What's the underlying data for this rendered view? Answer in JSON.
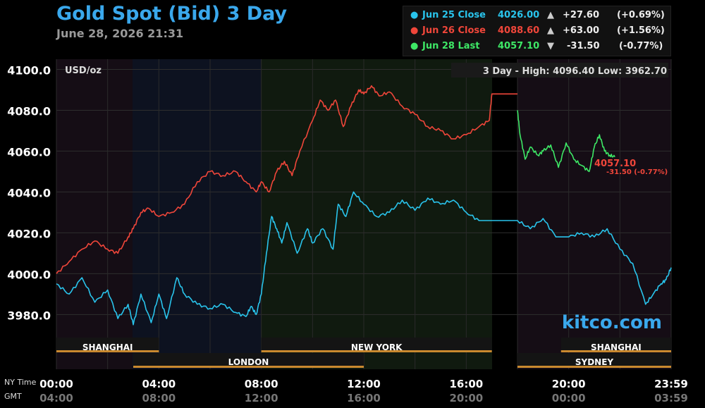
{
  "header": {
    "title": "Gold Spot (Bid) 3 Day",
    "datetime": "June 28, 2026 21:31"
  },
  "legend": [
    {
      "name": "Jun 25 Close",
      "price": "4026.00",
      "arrow": "▲",
      "change": "+27.60",
      "pct": "(+0.69%)",
      "color": "#29c4ec"
    },
    {
      "name": "Jun 26 Close",
      "price": "4088.60",
      "arrow": "▲",
      "change": "+63.00",
      "pct": "(+1.56%)",
      "color": "#f0463a"
    },
    {
      "name": "Jun 28 Last",
      "price": "4057.10",
      "arrow": "▼",
      "change": "-31.50",
      "pct": "(-0.77%)",
      "color": "#3ee866"
    }
  ],
  "chart_data": {
    "type": "line",
    "unit_label": "USD/oz",
    "stats": "3 Day - High: 4096.40  Low: 3962.70",
    "watermark": "kitco.com",
    "last_label": "4057.10",
    "last_change_label": "-31.50 (-0.77%)",
    "ylim": [
      3967,
      4105
    ],
    "y_ticks": [
      3980,
      4000,
      4020,
      4040,
      4060,
      4080,
      4100
    ],
    "y_tick_labels": [
      "3980.0",
      "4000.0",
      "4020.0",
      "4040.0",
      "4060.0",
      "4080.0",
      "4100.0"
    ],
    "x_hours": [
      0,
      4,
      8,
      12,
      16,
      20,
      24
    ],
    "x_labels_ny": [
      "00:00",
      "04:00",
      "08:00",
      "12:00",
      "16:00",
      "20:00",
      "23:59"
    ],
    "x_labels_gmt": [
      "04:00",
      "08:00",
      "12:00",
      "16:00",
      "20:00",
      "00:00",
      "03:59"
    ],
    "ny_time_label": "NY Time",
    "gmt_label": "GMT",
    "sessions_top": [
      {
        "name": "SHANGHAI",
        "start": 0,
        "end": 4
      },
      {
        "name": "NEW YORK",
        "start": 8,
        "end": 17
      },
      {
        "name": "SHANGHAI",
        "start": 19.7,
        "end": 24
      }
    ],
    "sessions_bottom": [
      {
        "name": "LONDON",
        "start": 3,
        "end": 12
      },
      {
        "name": "SYDNEY",
        "start": 18,
        "end": 24
      }
    ],
    "series": [
      {
        "name": "Jun 25 Close",
        "color": "#29c4ec",
        "x": [
          0,
          0.5,
          1,
          1.5,
          2,
          2.4,
          2.8,
          3,
          3.3,
          3.7,
          4,
          4.3,
          4.7,
          5,
          5.5,
          6,
          6.5,
          7,
          7.4,
          7.6,
          7.8,
          8,
          8.2,
          8.4,
          8.6,
          8.8,
          9,
          9.4,
          9.8,
          10,
          10.4,
          10.8,
          11,
          11.3,
          11.6,
          12,
          12.5,
          13,
          13.5,
          14,
          14.5,
          15,
          15.5,
          16,
          16.5,
          17,
          17.5,
          18,
          18.5,
          19,
          19.5,
          20,
          20.5,
          21,
          21.5,
          22,
          22.5,
          23,
          23.3,
          23.6,
          23.8,
          24
        ],
        "y": [
          3995,
          3990,
          3998,
          3986,
          3992,
          3978,
          3985,
          3975,
          3990,
          3976,
          3990,
          3978,
          3998,
          3990,
          3985,
          3983,
          3985,
          3981,
          3979,
          3984,
          3980,
          3990,
          4010,
          4028,
          4022,
          4015,
          4025,
          4010,
          4022,
          4015,
          4022,
          4012,
          4034,
          4028,
          4040,
          4034,
          4028,
          4030,
          4036,
          4031,
          4037,
          4034,
          4036,
          4030,
          4026,
          4026,
          4026,
          4026,
          4022,
          4027,
          4018,
          4018,
          4020,
          4018,
          4022,
          4012,
          4005,
          3985,
          3990,
          3995,
          3997,
          4003
        ]
      },
      {
        "name": "Jun 26 Close",
        "color": "#f0463a",
        "x": [
          0,
          0.5,
          1,
          1.5,
          2,
          2.4,
          2.8,
          3,
          3.3,
          3.6,
          4,
          4.5,
          5,
          5.5,
          6,
          6.5,
          7,
          7.4,
          7.8,
          8,
          8.3,
          8.6,
          8.9,
          9.2,
          9.5,
          10,
          10.3,
          10.6,
          10.9,
          11.2,
          11.5,
          11.8,
          12,
          12.3,
          12.6,
          13,
          13.5,
          14,
          14.5,
          15,
          15.5,
          16,
          16.5,
          16.9,
          17,
          17.5,
          18
        ],
        "y": [
          4000,
          4006,
          4012,
          4016,
          4012,
          4010,
          4018,
          4022,
          4030,
          4032,
          4028,
          4030,
          4034,
          4045,
          4050,
          4048,
          4050,
          4045,
          4040,
          4045,
          4040,
          4050,
          4055,
          4048,
          4060,
          4075,
          4085,
          4080,
          4085,
          4072,
          4082,
          4090,
          4088,
          4092,
          4087,
          4089,
          4082,
          4078,
          4072,
          4070,
          4066,
          4068,
          4072,
          4075,
          4088,
          4088,
          4088
        ]
      },
      {
        "name": "Jun 28 Last",
        "color": "#3ee866",
        "x": [
          18,
          18.1,
          18.3,
          18.5,
          18.8,
          19,
          19.3,
          19.6,
          19.9,
          20.2,
          20.5,
          20.8,
          21,
          21.2,
          21.4,
          21.6,
          21.8
        ],
        "y": [
          4080,
          4068,
          4056,
          4062,
          4058,
          4060,
          4063,
          4052,
          4064,
          4056,
          4053,
          4050,
          4062,
          4068,
          4060,
          4058,
          4057.1
        ]
      }
    ]
  }
}
